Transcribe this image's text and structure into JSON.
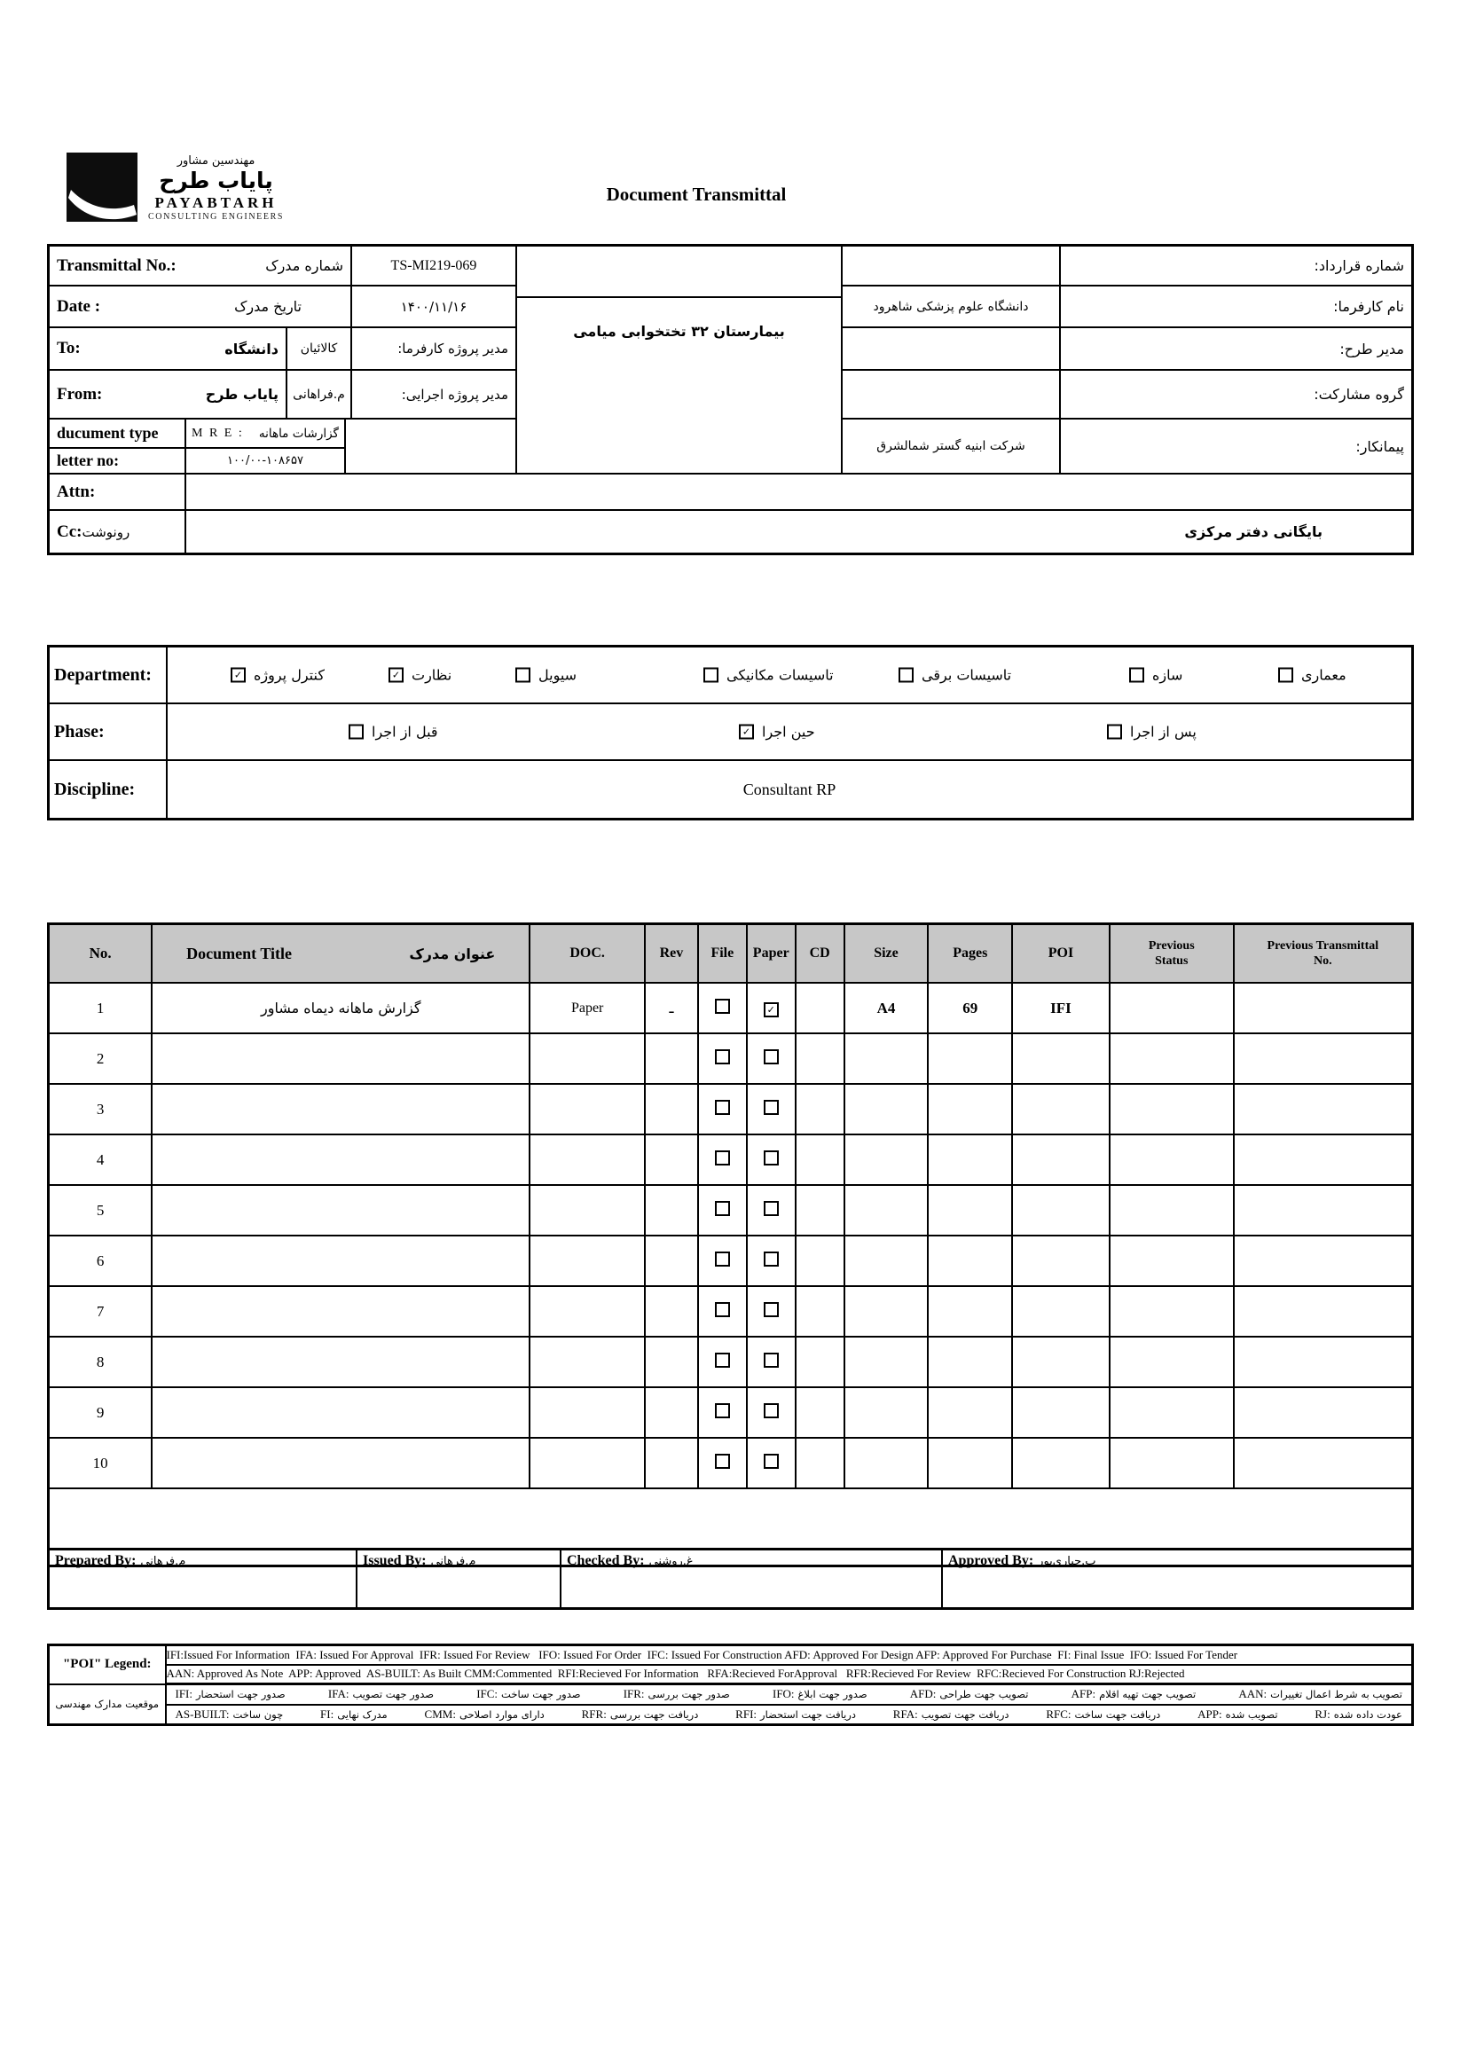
{
  "page": {
    "title": "Document Transmittal"
  },
  "logo": {
    "fa_line1": "مهندسین مشاور",
    "fa_line2": "پایاب طرح",
    "en_name": "PAYABTARH",
    "en_sub": "CONSULTING ENGINEERS"
  },
  "header": {
    "transmittal_label_en": "Transmittal No.:",
    "transmittal_label_fa": "شماره مدرک",
    "transmittal_value": "TS-MI219-069",
    "date_label_en": "Date :",
    "date_label_fa": "تاریخ مدرک",
    "date_value": "۱۴۰۰/۱۱/۱۶",
    "to_label_en": "To:",
    "to_value_fa": "دانشگاه",
    "to_person": "کالائیان",
    "to_role_label": "مدیر پروژه کارفرما:",
    "from_label_en": "From:",
    "from_value_fa": "پایاب طرح",
    "from_person": "م.فراهانی",
    "from_role_label": "مدیر پروژه اجرایی:",
    "doctype_label": "ducument type",
    "doctype_code": "M R E :",
    "doctype_value_fa": "گزارشات ماهانه",
    "letterno_label": "letter no:",
    "letterno_value": "۱۰۰/۰۰-۱۰۸۶۵۷",
    "attn_label": "Attn:",
    "cc_label_en": "Cc:",
    "cc_label_fa": "رونوشت",
    "cc_value": "بایگانی دفتر مرکزی",
    "project_name": "بیمارستان ۳۲ تختخوابی میامی",
    "contract_label": "شماره قرارداد:",
    "contract_value": "",
    "client_label": "نام کارفرما:",
    "client_value": "دانشگاه علوم پزشکی شاهرود",
    "design_manager_label": "مدیر طرح:",
    "design_manager_value": "",
    "partnership_label": "گروه مشارکت:",
    "partnership_value": "",
    "contractor_label": "پیمانکار:",
    "contractor_value": "شرکت ابنیه گستر شمالشرق"
  },
  "classification": {
    "department_label": "Department:",
    "departments": [
      {
        "label": "کنترل پروژه",
        "checked": true
      },
      {
        "label": "نظارت",
        "checked": true
      },
      {
        "label": "سیویل",
        "checked": false
      },
      {
        "label": "تاسیسات مکانیکی",
        "checked": false
      },
      {
        "label": "تاسیسات برقی",
        "checked": false
      },
      {
        "label": "سازه",
        "checked": false
      },
      {
        "label": "معماری",
        "checked": false
      }
    ],
    "phase_label": "Phase:",
    "phases": [
      {
        "label": "قبل از اجرا",
        "checked": false
      },
      {
        "label": "حین اجرا",
        "checked": true
      },
      {
        "label": "پس از اجرا",
        "checked": false
      }
    ],
    "discipline_label": "Discipline:",
    "discipline_value": "Consultant RP"
  },
  "doc_table": {
    "headers": {
      "no": "No.",
      "title_en": "Document Title",
      "title_fa": "عنوان مدرک",
      "doc": "DOC.",
      "rev": "Rev",
      "file": "File",
      "paper": "Paper",
      "cd": "CD",
      "size": "Size",
      "pages": "Pages",
      "poi": "POI",
      "prev_status": "Previous Status",
      "prev_transmittal": "Previous Transmittal No."
    },
    "rows": [
      {
        "no": "1",
        "title": "گزارش ماهانه دیماه مشاور",
        "doc": "Paper",
        "rev": "ـ",
        "file_checked": false,
        "paper_checked": true,
        "cd": "",
        "size": "A4",
        "pages": "69",
        "poi": "IFI",
        "prev_status": "",
        "prev_transmittal": ""
      },
      {
        "no": "2",
        "title": "",
        "doc": "",
        "rev": "",
        "file_checked": false,
        "paper_checked": false,
        "cd": "",
        "size": "",
        "pages": "",
        "poi": "",
        "prev_status": "",
        "prev_transmittal": ""
      },
      {
        "no": "3",
        "title": "",
        "doc": "",
        "rev": "",
        "file_checked": false,
        "paper_checked": false,
        "cd": "",
        "size": "",
        "pages": "",
        "poi": "",
        "prev_status": "",
        "prev_transmittal": ""
      },
      {
        "no": "4",
        "title": "",
        "doc": "",
        "rev": "",
        "file_checked": false,
        "paper_checked": false,
        "cd": "",
        "size": "",
        "pages": "",
        "poi": "",
        "prev_status": "",
        "prev_transmittal": ""
      },
      {
        "no": "5",
        "title": "",
        "doc": "",
        "rev": "",
        "file_checked": false,
        "paper_checked": false,
        "cd": "",
        "size": "",
        "pages": "",
        "poi": "",
        "prev_status": "",
        "prev_transmittal": ""
      },
      {
        "no": "6",
        "title": "",
        "doc": "",
        "rev": "",
        "file_checked": false,
        "paper_checked": false,
        "cd": "",
        "size": "",
        "pages": "",
        "poi": "",
        "prev_status": "",
        "prev_transmittal": ""
      },
      {
        "no": "7",
        "title": "",
        "doc": "",
        "rev": "",
        "file_checked": false,
        "paper_checked": false,
        "cd": "",
        "size": "",
        "pages": "",
        "poi": "",
        "prev_status": "",
        "prev_transmittal": ""
      },
      {
        "no": "8",
        "title": "",
        "doc": "",
        "rev": "",
        "file_checked": false,
        "paper_checked": false,
        "cd": "",
        "size": "",
        "pages": "",
        "poi": "",
        "prev_status": "",
        "prev_transmittal": ""
      },
      {
        "no": "9",
        "title": "",
        "doc": "",
        "rev": "",
        "file_checked": false,
        "paper_checked": false,
        "cd": "",
        "size": "",
        "pages": "",
        "poi": "",
        "prev_status": "",
        "prev_transmittal": ""
      },
      {
        "no": "10",
        "title": "",
        "doc": "",
        "rev": "",
        "file_checked": false,
        "paper_checked": false,
        "cd": "",
        "size": "",
        "pages": "",
        "poi": "",
        "prev_status": "",
        "prev_transmittal": ""
      }
    ]
  },
  "signatures": {
    "prepared_label": "Prepared By:",
    "prepared_value": "م.فرهانی",
    "issued_label": "Issued By:",
    "issued_value": "م.فرهانی",
    "checked_label": "Checked By:",
    "checked_value": "غ.روشنی",
    "approved_label": "Approved By:",
    "approved_value": "ب.جباری‌پور"
  },
  "legend": {
    "poi_label": "\"POI\" Legend:",
    "fa_label": "موقعیت مدارک مهندسی",
    "en_line1": "IFI:Issued For Information  IFA: Issued For Approval  IFR: Issued For Review   IFO: Issued For Order  IFC: Issued For Construction AFD: Approved For Design AFP: Approved For Purchase  FI: Final Issue  IFO: Issued For Tender",
    "en_line2": "AAN: Approved As Note  APP: Approved  AS-BUILT: As Built CMM:Commented  RFI:Recieved For Information   RFA:Recieved ForApproval   RFR:Recieved For Review  RFC:Recieved For Construction RJ:Rejected",
    "fa_line1": [
      {
        "abbr": "IFI:",
        "text": "صدور جهت استحضار"
      },
      {
        "abbr": "IFA:",
        "text": "صدور جهت تصویب"
      },
      {
        "abbr": "IFC:",
        "text": "صدور جهت ساخت"
      },
      {
        "abbr": "IFR:",
        "text": "صدور جهت بررسی"
      },
      {
        "abbr": "IFO:",
        "text": "صدور جهت ابلاغ"
      },
      {
        "abbr": "AFD:",
        "text": "تصویب جهت طراحی"
      },
      {
        "abbr": "AFP:",
        "text": "تصویب جهت تهیه اقلام"
      },
      {
        "abbr": "AAN:",
        "text": "تصویب به شرط اعمال تغییرات"
      }
    ],
    "fa_line2": [
      {
        "abbr": "AS-BUILT:",
        "text": "چون ساخت"
      },
      {
        "abbr": "FI:",
        "text": "مدرک نهایی"
      },
      {
        "abbr": "CMM:",
        "text": "دارای موارد اصلاحی"
      },
      {
        "abbr": "RFR:",
        "text": "دریافت جهت بررسی"
      },
      {
        "abbr": "RFI:",
        "text": "دریافت جهت استحضار"
      },
      {
        "abbr": "RFA:",
        "text": "دریافت جهت تصویب"
      },
      {
        "abbr": "RFC:",
        "text": "دریافت جهت ساخت"
      },
      {
        "abbr": "APP:",
        "text": "تصویب شده"
      },
      {
        "abbr": "RJ:",
        "text": "عودت داده شده"
      }
    ]
  },
  "colors": {
    "table_header_bg": "#c7c7c7",
    "border": "#000000"
  }
}
